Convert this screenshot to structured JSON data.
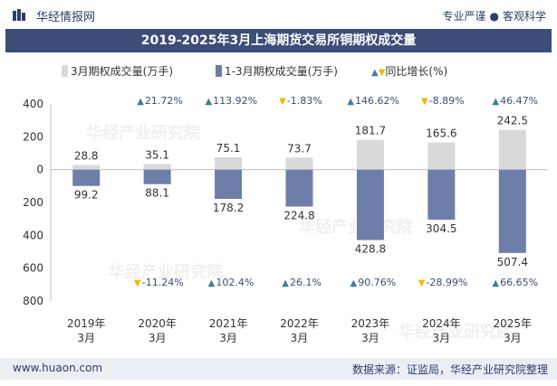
{
  "header": {
    "brand": "华经情报网",
    "tagline_left": "专业严谨",
    "tagline_sep": "●",
    "tagline_right": "客观科学"
  },
  "watermark": "华经产业研究院",
  "footer": {
    "site": "www.huaon.com",
    "source": "数据来源：证监局，华经产业研究院整理"
  },
  "colors": {
    "title_bg": "#3c4d78",
    "monthly_bar": "#d9d9d9",
    "cumulative_bar": "#6d7ea8",
    "up_arrow": "#3e7f9d",
    "down_arrow": "#f2b800",
    "footer_bg": "#ebeef4"
  },
  "chart_data": {
    "type": "bar",
    "title": "2019-2025年3月上海期货交易所铜期权成交量",
    "categories": [
      "2019年\n3月",
      "2020年\n3月",
      "2021年\n3月",
      "2022年\n3月",
      "2023年\n3月",
      "2024年\n3月",
      "2025年\n3月"
    ],
    "series": [
      {
        "name": "3月期权成交量(万手)",
        "direction": "up",
        "values": [
          28.8,
          35.1,
          75.1,
          73.7,
          181.7,
          165.6,
          242.5
        ],
        "value_labels": [
          "28.8",
          "35.1",
          "75.1",
          "73.7",
          "181.7",
          "165.6",
          "242.5"
        ]
      },
      {
        "name": "1-3月期权成交量(万手)",
        "direction": "down",
        "values": [
          99.2,
          88.1,
          178.2,
          224.8,
          428.8,
          304.5,
          507.4
        ],
        "value_labels": [
          "99.2",
          "88.1",
          "178.2",
          "224.8",
          "428.8",
          "304.5",
          "507.4"
        ]
      }
    ],
    "growth_legend": "同比增长(%)",
    "growth_monthly": [
      {
        "value": null,
        "label": ""
      },
      {
        "value": 21.72,
        "label": "21.72%"
      },
      {
        "value": 113.92,
        "label": "113.92%"
      },
      {
        "value": -1.83,
        "label": "-1.83%"
      },
      {
        "value": 146.62,
        "label": "146.62%"
      },
      {
        "value": -8.89,
        "label": "-8.89%"
      },
      {
        "value": 46.47,
        "label": "46.47%"
      }
    ],
    "growth_cumulative": [
      {
        "value": null,
        "label": ""
      },
      {
        "value": -11.24,
        "label": "-11.24%"
      },
      {
        "value": 102.4,
        "label": "102.4%"
      },
      {
        "value": 26.1,
        "label": "26.1%"
      },
      {
        "value": 90.76,
        "label": "90.76%"
      },
      {
        "value": -28.99,
        "label": "-28.99%"
      },
      {
        "value": 66.65,
        "label": "66.65%"
      }
    ],
    "y_ticks": [
      {
        "value": 400,
        "label": "400"
      },
      {
        "value": 200,
        "label": "200"
      },
      {
        "value": 0,
        "label": "0"
      },
      {
        "value": -200,
        "label": "200"
      },
      {
        "value": -400,
        "label": "400"
      },
      {
        "value": -600,
        "label": "600"
      },
      {
        "value": -800,
        "label": "800"
      }
    ],
    "ylim": [
      -800,
      400
    ],
    "legend_position": "top"
  }
}
